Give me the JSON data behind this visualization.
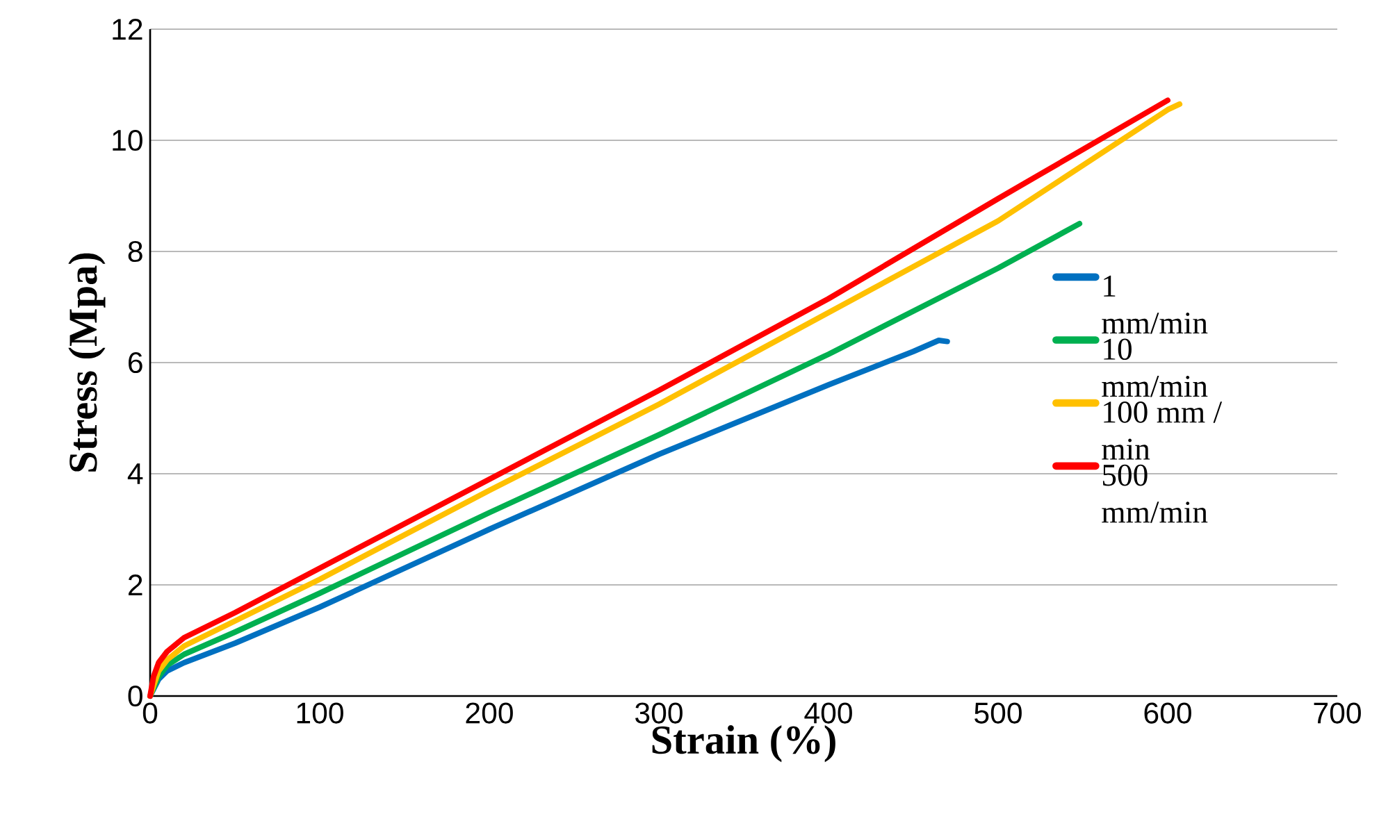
{
  "chart_data": {
    "type": "line",
    "xlabel": "Strain (%)",
    "ylabel": "Stress (Mpa)",
    "xlim": [
      0,
      700
    ],
    "xticks": [
      0,
      100,
      200,
      300,
      400,
      500,
      600,
      700
    ],
    "ylim": [
      0,
      12
    ],
    "yticks": [
      0,
      2,
      4,
      6,
      8,
      10,
      12
    ],
    "grid": "y",
    "legend": "right",
    "line_style": "solid",
    "marker": "none",
    "series": [
      {
        "name": "1 mm/min",
        "color": "#0070c0",
        "x": [
          0,
          5,
          10,
          20,
          50,
          100,
          200,
          300,
          400,
          450,
          465,
          470
        ],
        "values": [
          0,
          0.3,
          0.45,
          0.6,
          0.95,
          1.6,
          3.0,
          4.35,
          5.6,
          6.2,
          6.4,
          6.38
        ]
      },
      {
        "name": "10 mm/min",
        "color": "#00b050",
        "x": [
          0,
          5,
          10,
          20,
          50,
          100,
          200,
          300,
          400,
          500,
          548
        ],
        "values": [
          0,
          0.35,
          0.55,
          0.75,
          1.15,
          1.85,
          3.3,
          4.7,
          6.15,
          7.7,
          8.5
        ]
      },
      {
        "name": "100 mm / min",
        "color": "#ffc000",
        "x": [
          0,
          5,
          10,
          20,
          50,
          100,
          200,
          300,
          400,
          500,
          600,
          607
        ],
        "values": [
          0,
          0.45,
          0.65,
          0.9,
          1.35,
          2.1,
          3.7,
          5.25,
          6.9,
          8.55,
          10.55,
          10.65
        ]
      },
      {
        "name": "500 mm/min",
        "color": "#ff0000",
        "x": [
          0,
          2,
          5,
          10,
          20,
          50,
          100,
          200,
          300,
          400,
          500,
          600
        ],
        "values": [
          0,
          0.35,
          0.6,
          0.8,
          1.05,
          1.5,
          2.3,
          3.9,
          5.5,
          7.15,
          8.95,
          10.72
        ]
      }
    ]
  }
}
